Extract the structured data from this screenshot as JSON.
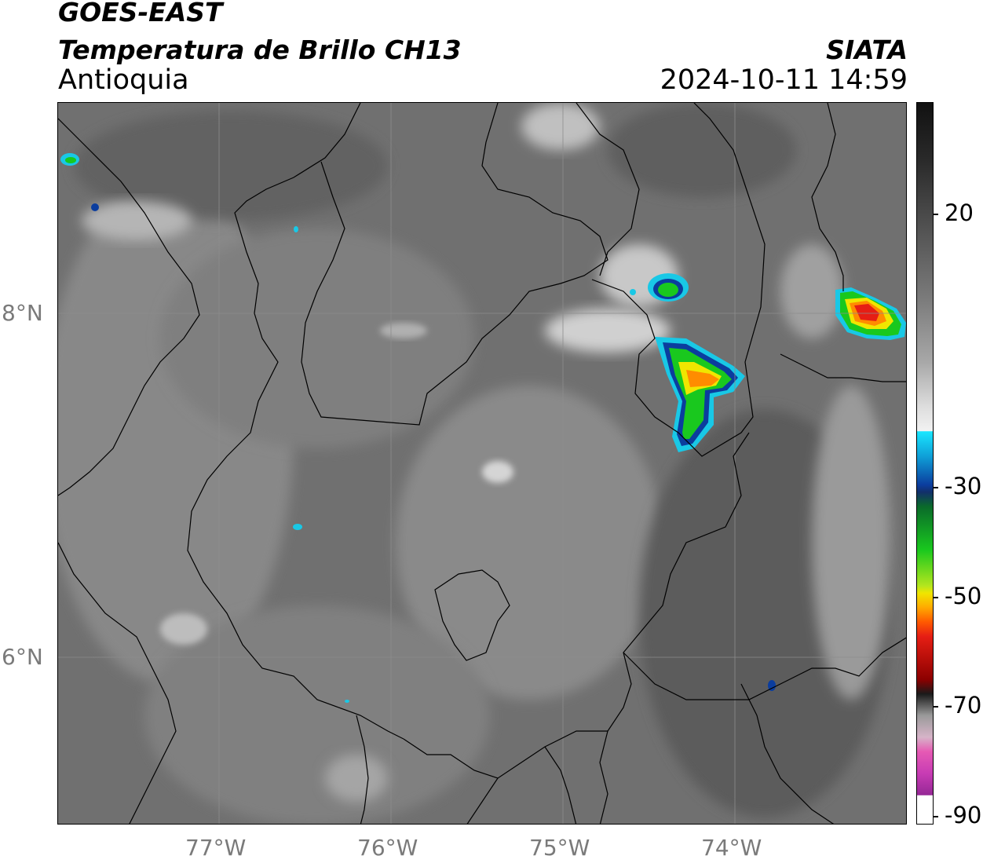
{
  "header": {
    "satellite": "GOES-EAST",
    "product": "Temperatura de Brillo CH13",
    "region": "Antioquia",
    "organization": "SIATA",
    "datetime": "2024-10-11 14:59"
  },
  "map": {
    "lon_ticks": [
      "77°W",
      "76°W",
      "75°W",
      "74°W"
    ],
    "lat_ticks": [
      "8°N",
      "6°N"
    ],
    "colors": {
      "background_gray": "#6e6e6e",
      "cloud_light": "#d9d9d9",
      "cold_cyan": "#19c8e6",
      "cold_blue": "#0b3d9e",
      "cold_green": "#19c81e",
      "cold_yellow": "#f0e600",
      "cold_orange": "#ff8c00",
      "cold_red": "#e61e14",
      "borders": "#000000"
    }
  },
  "colorbar": {
    "ticks": [
      "20",
      "-30",
      "-50",
      "-70",
      "-90"
    ]
  }
}
